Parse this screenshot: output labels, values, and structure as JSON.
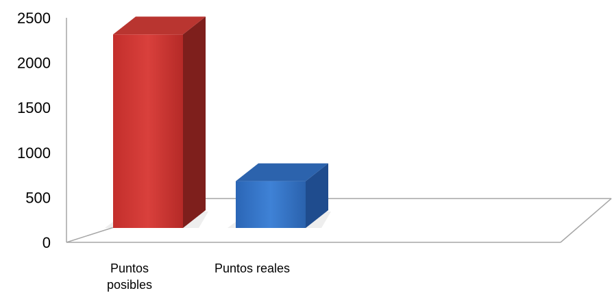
{
  "chart_data": {
    "type": "bar",
    "categories": [
      "Puntos posibles",
      "Puntos reales"
    ],
    "category_lines": [
      [
        "Puntos",
        "posibles"
      ],
      [
        "Puntos reales"
      ]
    ],
    "values": [
      2150,
      520
    ],
    "ylim": [
      0,
      2500
    ],
    "yticks": [
      "0",
      "500",
      "1000",
      "1500",
      "2000",
      "2500"
    ],
    "grid": false,
    "legend": "none",
    "style": "3d-column",
    "colors": [
      "#c8322f",
      "#2f6fbf"
    ]
  }
}
